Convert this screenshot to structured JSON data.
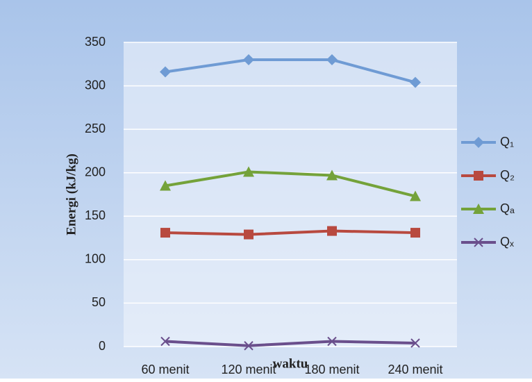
{
  "chart_data": {
    "type": "line",
    "x_label": "waktu",
    "y_label": "Energi (kJ/kg)",
    "categories": [
      "60 menit",
      "120 menit",
      "180 menit",
      "240 menit"
    ],
    "series": [
      {
        "name": "Q₁",
        "color": "#6f9bd4",
        "marker": "diamond",
        "values": [
          316,
          330,
          330,
          304
        ]
      },
      {
        "name": "Q₂",
        "color": "#b8493f",
        "marker": "square",
        "values": [
          131,
          129,
          133,
          131
        ]
      },
      {
        "name": "Qₐ",
        "color": "#74a23a",
        "marker": "triangle",
        "values": [
          185,
          201,
          197,
          173
        ]
      },
      {
        "name": "Qₓ",
        "color": "#6a4f8c",
        "marker": "x",
        "values": [
          6,
          1,
          6,
          4
        ]
      }
    ],
    "ylim": [
      0,
      350
    ],
    "yticks": [
      0,
      50,
      100,
      150,
      200,
      250,
      300,
      350
    ],
    "grid": true,
    "legend": "right"
  }
}
